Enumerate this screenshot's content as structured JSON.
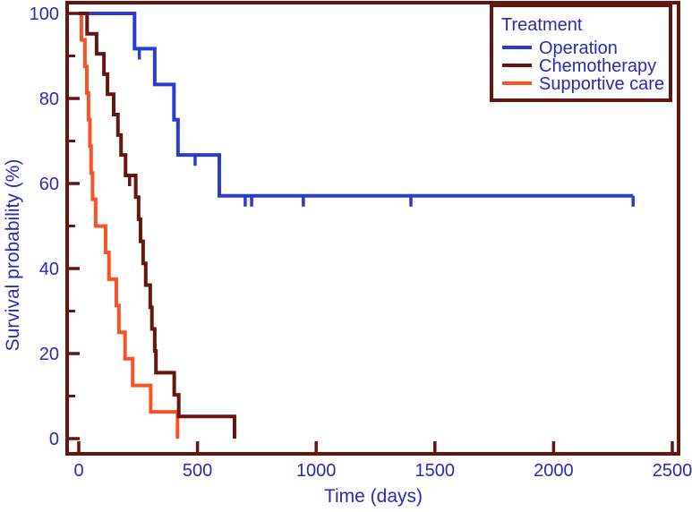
{
  "chart_data": {
    "type": "line",
    "subtype": "kaplan-meier-step-survival",
    "title": "",
    "xlabel": "Time (days)",
    "ylabel": "Survival probability (%)",
    "xlim": [
      0,
      2500
    ],
    "ylim": [
      0,
      100
    ],
    "x_ticks": [
      0,
      500,
      1000,
      1500,
      2000,
      2500
    ],
    "y_ticks": [
      0,
      20,
      40,
      60,
      80,
      100
    ],
    "y_minor_ticks": [
      10,
      30,
      50,
      70,
      90
    ],
    "grid": "off",
    "legend": {
      "title": "Treatment",
      "position": "top-right"
    },
    "series": [
      {
        "name": "Operation",
        "color": "#2a3cd2",
        "points": [
          [
            0,
            100
          ],
          [
            235,
            91.7
          ],
          [
            320,
            83.3
          ],
          [
            401,
            75.0
          ],
          [
            418,
            66.7
          ],
          [
            592,
            57.1
          ]
        ],
        "end_day": 2335,
        "censors": [
          [
            255,
            91.7
          ],
          [
            490,
            66.7
          ],
          [
            701,
            57.1
          ],
          [
            728,
            57.1
          ],
          [
            946,
            57.1
          ],
          [
            1399,
            57.1
          ],
          [
            2335,
            57.1
          ]
        ]
      },
      {
        "name": "Chemotherapy",
        "color": "#661511",
        "points": [
          [
            0,
            100
          ],
          [
            35,
            95.2
          ],
          [
            75,
            90.5
          ],
          [
            106,
            85.7
          ],
          [
            121,
            81.0
          ],
          [
            147,
            76.2
          ],
          [
            165,
            71.4
          ],
          [
            178,
            66.7
          ],
          [
            197,
            61.9
          ],
          [
            240,
            56.8
          ],
          [
            252,
            51.6
          ],
          [
            260,
            46.4
          ],
          [
            271,
            41.2
          ],
          [
            282,
            36.1
          ],
          [
            301,
            30.9
          ],
          [
            308,
            25.8
          ],
          [
            320,
            20.6
          ],
          [
            325,
            15.5
          ],
          [
            402,
            10.3
          ],
          [
            421,
            5.2
          ],
          [
            656,
            0
          ]
        ],
        "end_day": 656,
        "censors": [
          [
            214,
            61.9
          ]
        ]
      },
      {
        "name": "Supportive care",
        "color": "#f85326",
        "points": [
          [
            0,
            100
          ],
          [
            11,
            93.8
          ],
          [
            26,
            87.5
          ],
          [
            34,
            81.3
          ],
          [
            41,
            75.0
          ],
          [
            47,
            68.8
          ],
          [
            52,
            62.5
          ],
          [
            58,
            56.3
          ],
          [
            71,
            50.0
          ],
          [
            113,
            43.8
          ],
          [
            127,
            37.5
          ],
          [
            158,
            31.3
          ],
          [
            169,
            25.0
          ],
          [
            195,
            18.8
          ],
          [
            227,
            12.5
          ],
          [
            303,
            6.3
          ],
          [
            416,
            0
          ]
        ],
        "end_day": 416,
        "censors": []
      }
    ]
  },
  "colors": {
    "frame": "#661511",
    "text": "#2b29b3",
    "background": "#ffffff"
  }
}
